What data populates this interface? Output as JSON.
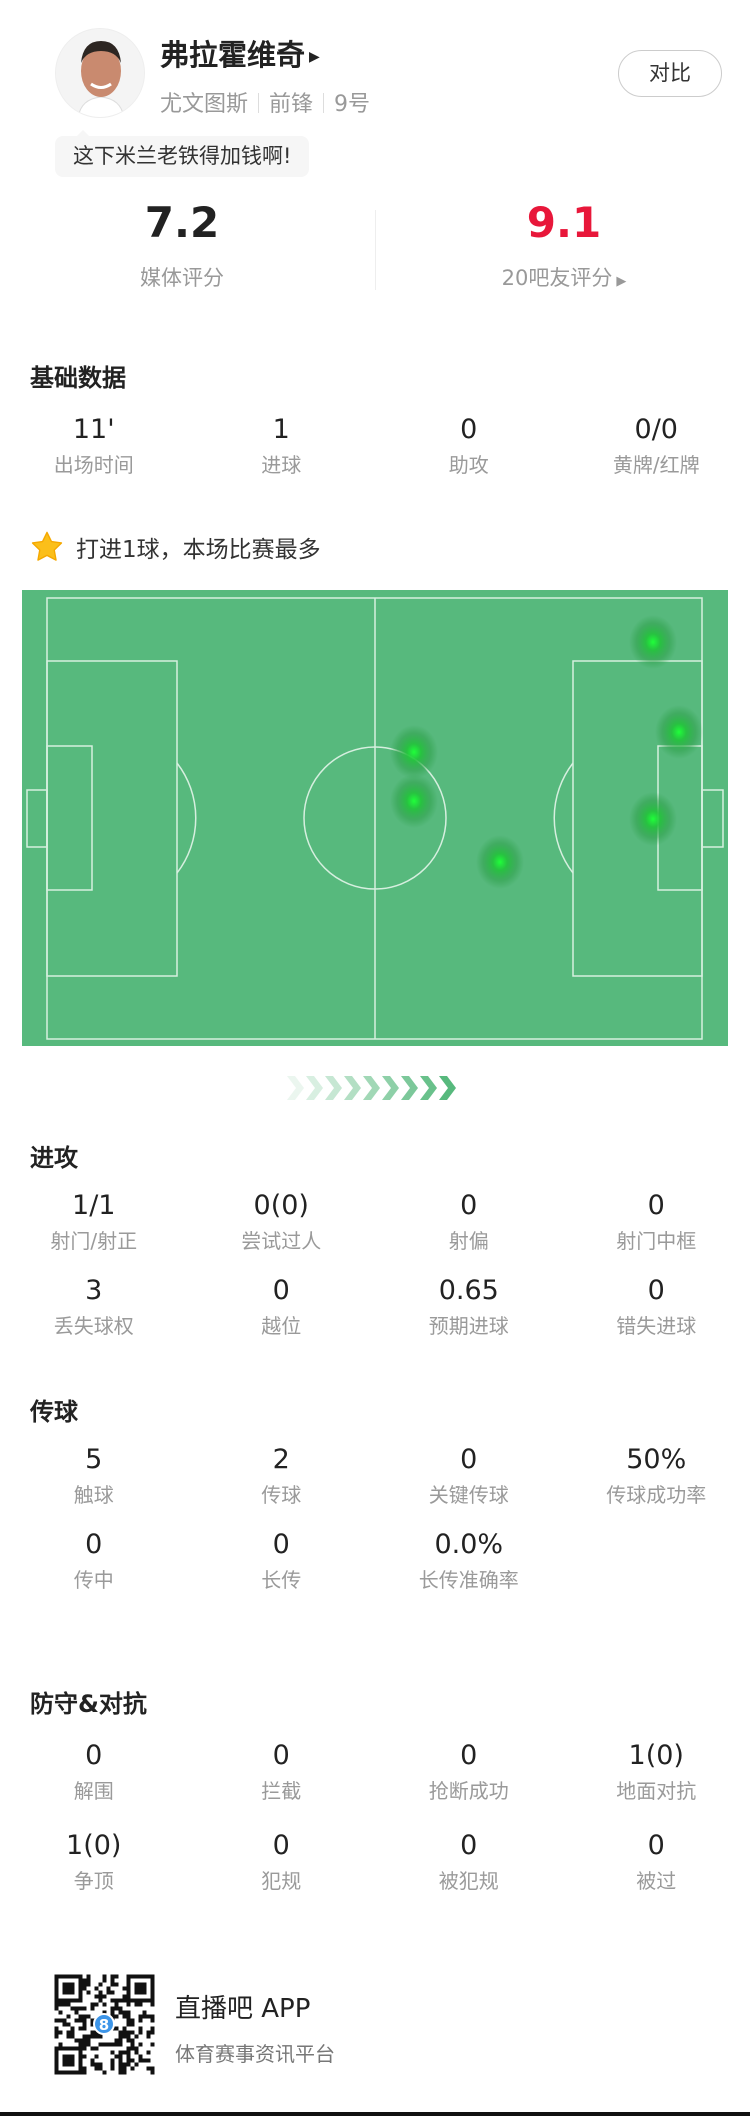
{
  "player": {
    "name": "弗拉霍维奇",
    "team": "尤文图斯",
    "position": "前锋",
    "number": "9号",
    "comment": "这下米兰老铁得加钱啊!",
    "compare_label": "对比"
  },
  "ratings": {
    "media": {
      "value": "7.2",
      "label": "媒体评分"
    },
    "fans": {
      "value": "9.1",
      "label": "20吧友评分",
      "color": "#e8173a"
    }
  },
  "basic": {
    "title": "基础数据",
    "items": [
      {
        "value": "11'",
        "label": "出场时间"
      },
      {
        "value": "1",
        "label": "进球"
      },
      {
        "value": "0",
        "label": "助攻"
      },
      {
        "value": "0/0",
        "label": "黄牌/红牌"
      }
    ]
  },
  "highlight": {
    "icon": "star-icon",
    "text": "打进1球，本场比赛最多"
  },
  "heatmap": {
    "pitch_color": "#57b97d",
    "hot_color": "#1fe03a",
    "direction": "attacking-right"
  },
  "attack": {
    "title": "进攻",
    "items": [
      {
        "value": "1/1",
        "label": "射门/射正"
      },
      {
        "value": "0(0)",
        "label": "尝试过人"
      },
      {
        "value": "0",
        "label": "射偏"
      },
      {
        "value": "0",
        "label": "射门中框"
      },
      {
        "value": "3",
        "label": "丢失球权"
      },
      {
        "value": "0",
        "label": "越位"
      },
      {
        "value": "0.65",
        "label": "预期进球"
      },
      {
        "value": "0",
        "label": "错失进球"
      }
    ]
  },
  "passing": {
    "title": "传球",
    "items": [
      {
        "value": "5",
        "label": "触球"
      },
      {
        "value": "2",
        "label": "传球"
      },
      {
        "value": "0",
        "label": "关键传球"
      },
      {
        "value": "50%",
        "label": "传球成功率"
      },
      {
        "value": "0",
        "label": "传中"
      },
      {
        "value": "0",
        "label": "长传"
      },
      {
        "value": "0.0%",
        "label": "长传准确率"
      }
    ]
  },
  "defense": {
    "title": "防守&对抗",
    "items": [
      {
        "value": "0",
        "label": "解围"
      },
      {
        "value": "0",
        "label": "拦截"
      },
      {
        "value": "0",
        "label": "抢断成功"
      },
      {
        "value": "1(0)",
        "label": "地面对抗"
      },
      {
        "value": "1(0)",
        "label": "争顶"
      },
      {
        "value": "0",
        "label": "犯规"
      },
      {
        "value": "0",
        "label": "被犯规"
      },
      {
        "value": "0",
        "label": "被过"
      }
    ]
  },
  "footer": {
    "app_name": "直播吧 APP",
    "tagline": "体育赛事资讯平台",
    "qr_badge": "8"
  }
}
